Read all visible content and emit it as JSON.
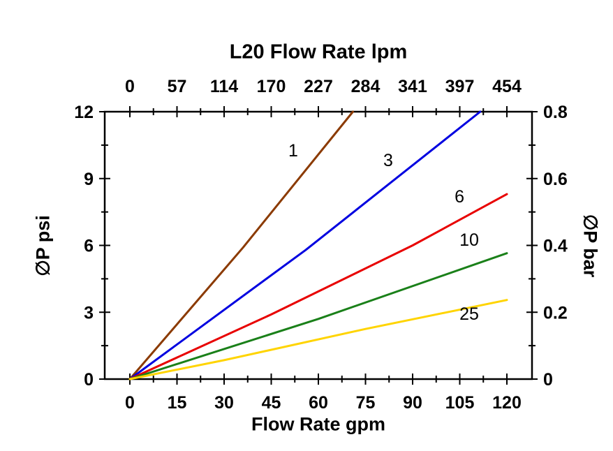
{
  "axes": {
    "top_title": "L20 Flow Rate lpm",
    "bottom_title": "Flow Rate gpm",
    "left_title": "∅P psi",
    "right_title": "∅P bar"
  },
  "chart_data": {
    "type": "line",
    "title": "L20 Flow Rate lpm",
    "xlabel": "Flow Rate gpm",
    "ylabel": "∅P psi",
    "ylabel_right": "∅P bar",
    "x_bottom": {
      "label": "Flow Rate gpm",
      "ticks": [
        0,
        15,
        30,
        45,
        60,
        75,
        90,
        105,
        120
      ],
      "range": [
        0,
        120
      ]
    },
    "x_top": {
      "label": "L20 Flow Rate lpm",
      "ticks": [
        0,
        57,
        114,
        170,
        227,
        284,
        341,
        397,
        454
      ],
      "range": [
        0,
        454
      ]
    },
    "y_left": {
      "label": "∅P psi",
      "ticks": [
        0,
        3,
        6,
        9,
        12
      ],
      "range": [
        0,
        12
      ]
    },
    "y_right": {
      "label": "∅P bar",
      "ticks": [
        0,
        0.2,
        0.4,
        0.6,
        0.8
      ],
      "range": [
        0,
        0.8
      ]
    },
    "grid": false,
    "legend": "inline-labels",
    "series": [
      {
        "name": "1",
        "color": "#8B3A00",
        "points": [
          [
            0,
            0
          ],
          [
            36,
            5.9
          ],
          [
            71,
            12
          ]
        ],
        "label_at": [
          52,
          10.0
        ]
      },
      {
        "name": "3",
        "color": "#0000E0",
        "points": [
          [
            0,
            0
          ],
          [
            56,
            5.8
          ],
          [
            111.5,
            12
          ]
        ],
        "label_at": [
          82.2,
          9.56
        ]
      },
      {
        "name": "6",
        "color": "#E80000",
        "points": [
          [
            0,
            0
          ],
          [
            45,
            2.9
          ],
          [
            90,
            6.0
          ],
          [
            120,
            8.3
          ]
        ],
        "label_at": [
          104.9,
          7.93
        ]
      },
      {
        "name": "10",
        "color": "#1A8019",
        "points": [
          [
            0,
            0
          ],
          [
            60,
            2.7
          ],
          [
            120,
            5.65
          ]
        ],
        "label_at": [
          108,
          5.99
        ]
      },
      {
        "name": "25",
        "color": "#FFD400",
        "points": [
          [
            0,
            0
          ],
          [
            30,
            0.85
          ],
          [
            75,
            2.25
          ],
          [
            120,
            3.55
          ]
        ],
        "label_at": [
          108,
          2.66
        ]
      }
    ],
    "colors": {
      "axis": "#000000",
      "background": "#FFFFFF"
    }
  }
}
